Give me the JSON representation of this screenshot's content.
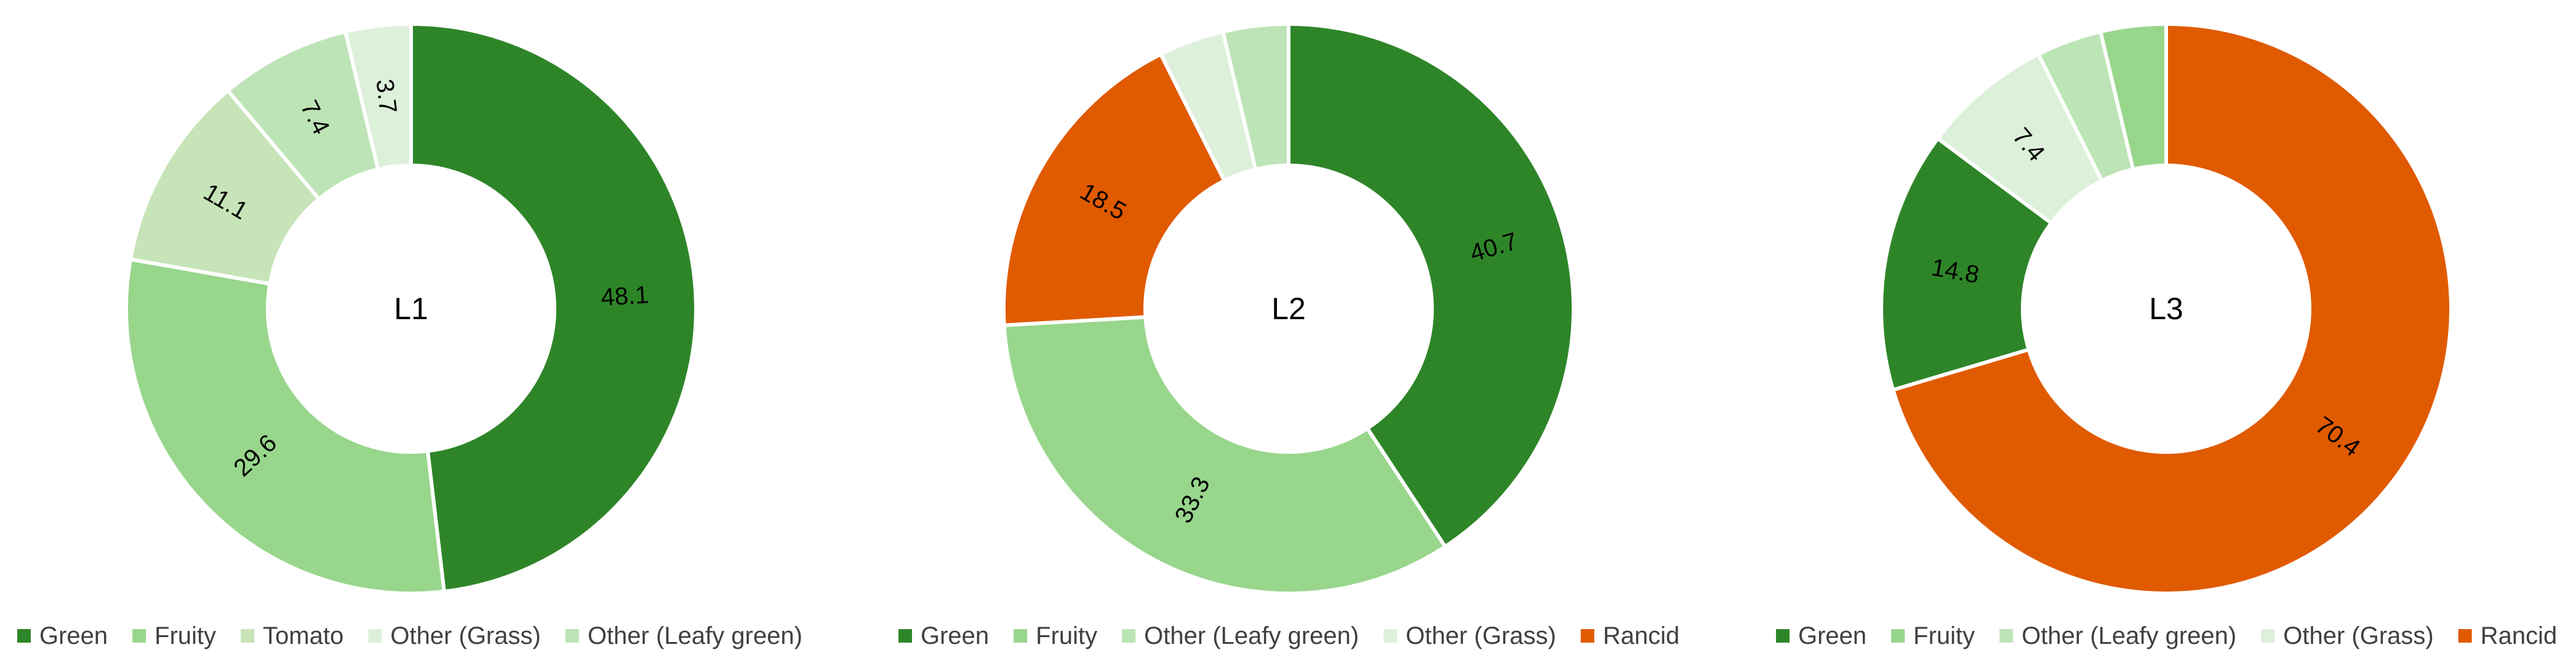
{
  "chart_data": [
    {
      "type": "pie",
      "center_label": "L1",
      "slices": [
        {
          "name": "Green",
          "value": 48.1,
          "label": "48.1",
          "color": "#2e8528"
        },
        {
          "name": "Fruity",
          "value": 29.6,
          "label": "29.6",
          "color": "#98d68c"
        },
        {
          "name": "Tomato",
          "value": 11.1,
          "label": "11.1",
          "color": "#c6e4b8"
        },
        {
          "name": "Other (Leafy green)",
          "value": 7.4,
          "label": "7.4",
          "color": "#bde4b6"
        },
        {
          "name": "Other (Grass)",
          "value": 3.7,
          "label": "3.7",
          "color": "#dcf0da"
        }
      ],
      "legend": [
        "Green",
        "Fruity",
        "Tomato",
        "Other (Grass)",
        "Other (Leafy green)"
      ],
      "legend_colors": [
        "#2e8528",
        "#98d68c",
        "#c6e4b8",
        "#dcf0da",
        "#bde4b6"
      ]
    },
    {
      "type": "pie",
      "center_label": "L2",
      "slices": [
        {
          "name": "Green",
          "value": 40.7,
          "label": "40.7",
          "color": "#2e8528"
        },
        {
          "name": "Fruity",
          "value": 33.3,
          "label": "33.3",
          "color": "#98d68c"
        },
        {
          "name": "Rancid",
          "value": 18.5,
          "label": "18.5",
          "color": "#e05a00"
        },
        {
          "name": "Other (Grass)",
          "value": 3.7,
          "label": "",
          "color": "#dcf0da"
        },
        {
          "name": "Other (Leafy green)",
          "value": 3.7,
          "label": "",
          "color": "#bde4b6"
        }
      ],
      "legend": [
        "Green",
        "Fruity",
        "Other (Leafy green)",
        "Other (Grass)",
        "Rancid"
      ],
      "legend_colors": [
        "#2e8528",
        "#98d68c",
        "#bde4b6",
        "#dcf0da",
        "#e05a00"
      ]
    },
    {
      "type": "pie",
      "center_label": "L3",
      "slices": [
        {
          "name": "Rancid",
          "value": 70.4,
          "label": "70.4",
          "color": "#e05a00"
        },
        {
          "name": "Green",
          "value": 14.8,
          "label": "14.8",
          "color": "#2e8528"
        },
        {
          "name": "Other (Grass)",
          "value": 7.4,
          "label": "7.4",
          "color": "#dcf0da"
        },
        {
          "name": "Other (Leafy green)",
          "value": 3.7,
          "label": "",
          "color": "#bde4b6"
        },
        {
          "name": "Fruity",
          "value": 3.7,
          "label": "",
          "color": "#98d68c"
        }
      ],
      "legend": [
        "Green",
        "Fruity",
        "Other (Leafy green)",
        "Other (Grass)",
        "Rancid"
      ],
      "legend_colors": [
        "#2e8528",
        "#98d68c",
        "#bde4b6",
        "#dcf0da",
        "#e05a00"
      ]
    }
  ]
}
